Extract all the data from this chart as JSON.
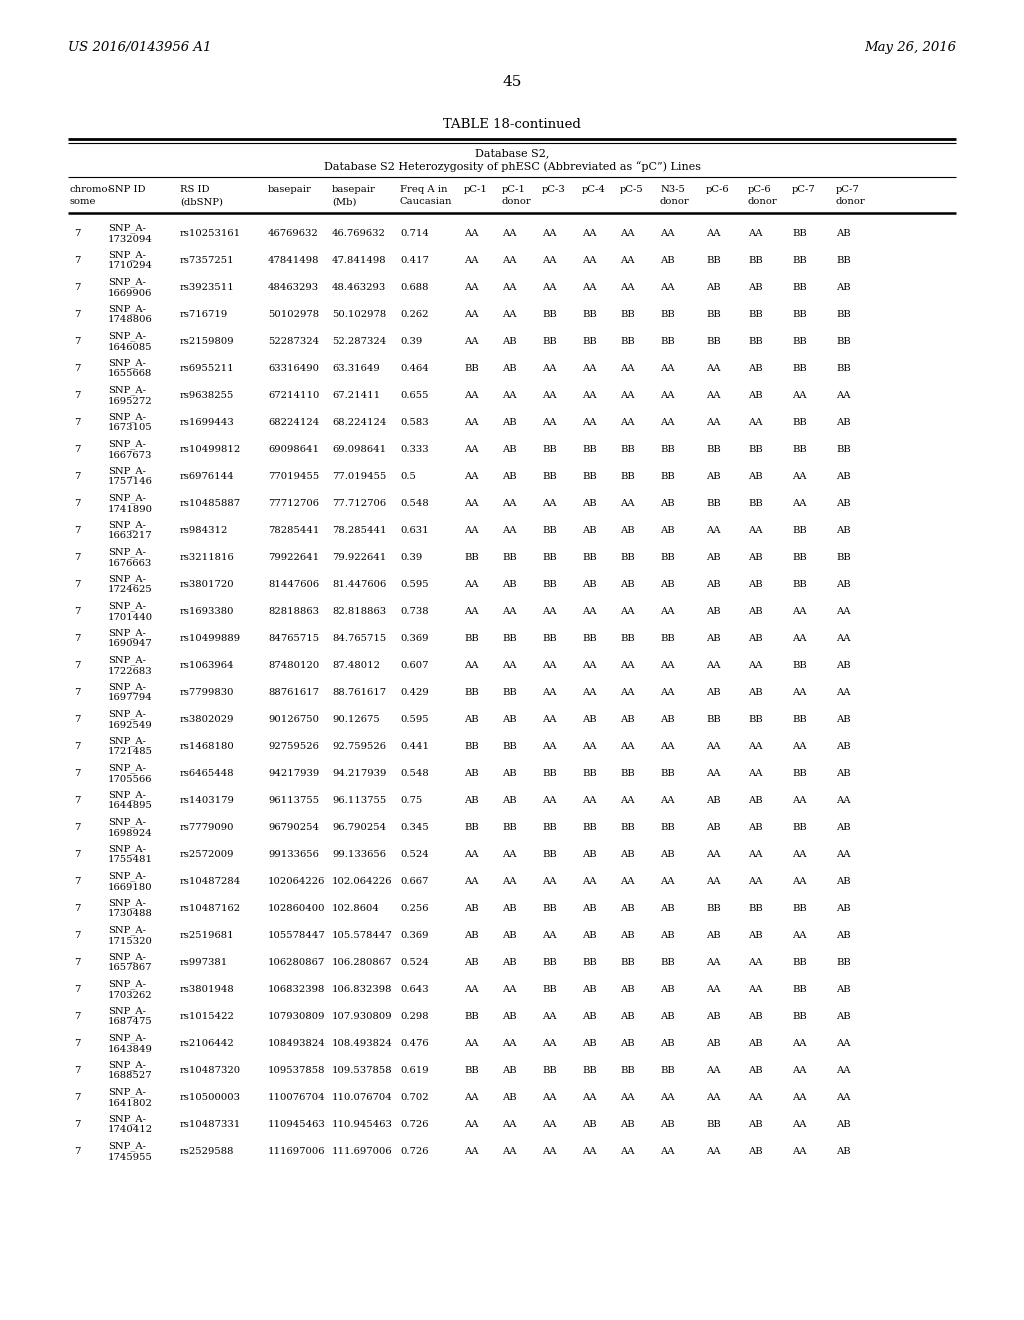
{
  "header_left": "US 2016/0143956 A1",
  "header_right": "May 26, 2016",
  "page_number": "45",
  "table_title": "TABLE 18-continued",
  "db_title1": "Database S2,",
  "db_title2": "Database S2 Heterozygosity of phESC (Abbreviated as “pC”) Lines",
  "col_header_lines": [
    [
      "chromo-",
      "some"
    ],
    [
      "SNP ID",
      ""
    ],
    [
      "RS ID",
      "(dbSNP)"
    ],
    [
      "basepair",
      ""
    ],
    [
      "basepair",
      "(Mb)"
    ],
    [
      "Freq A in",
      "Caucasian"
    ],
    [
      "pC-1",
      ""
    ],
    [
      "pC-1",
      "donor"
    ],
    [
      "pC-3",
      ""
    ],
    [
      "pC-4",
      ""
    ],
    [
      "pC-5",
      ""
    ],
    [
      "N3-5",
      "donor"
    ],
    [
      "pC-6",
      ""
    ],
    [
      "pC-6",
      "donor"
    ],
    [
      "pC-7",
      ""
    ],
    [
      "pC-7",
      "donor"
    ]
  ],
  "rows": [
    [
      "7",
      "SNP_A-\n1732094",
      "rs10253161",
      "46769632",
      "46.769632",
      "0.714",
      "AA",
      "AA",
      "AA",
      "AA",
      "AA",
      "AA",
      "AA",
      "AA",
      "BB",
      "AB"
    ],
    [
      "7",
      "SNP_A-\n1710294",
      "rs7357251",
      "47841498",
      "47.841498",
      "0.417",
      "AA",
      "AA",
      "AA",
      "AA",
      "AA",
      "AB",
      "BB",
      "BB",
      "BB",
      "BB"
    ],
    [
      "7",
      "SNP_A-\n1669906",
      "rs3923511",
      "48463293",
      "48.463293",
      "0.688",
      "AA",
      "AA",
      "AA",
      "AA",
      "AA",
      "AA",
      "AB",
      "AB",
      "BB",
      "AB"
    ],
    [
      "7",
      "SNP_A-\n1748806",
      "rs716719",
      "50102978",
      "50.102978",
      "0.262",
      "AA",
      "AA",
      "BB",
      "BB",
      "BB",
      "BB",
      "BB",
      "BB",
      "BB",
      "BB"
    ],
    [
      "7",
      "SNP_A-\n1646085",
      "rs2159809",
      "52287324",
      "52.287324",
      "0.39",
      "AA",
      "AB",
      "BB",
      "BB",
      "BB",
      "BB",
      "BB",
      "BB",
      "BB",
      "BB"
    ],
    [
      "7",
      "SNP_A-\n1655668",
      "rs6955211",
      "63316490",
      "63.31649",
      "0.464",
      "BB",
      "AB",
      "AA",
      "AA",
      "AA",
      "AA",
      "AA",
      "AB",
      "BB",
      "BB"
    ],
    [
      "7",
      "SNP_A-\n1695272",
      "rs9638255",
      "67214110",
      "67.21411",
      "0.655",
      "AA",
      "AA",
      "AA",
      "AA",
      "AA",
      "AA",
      "AA",
      "AB",
      "AA",
      "AA"
    ],
    [
      "7",
      "SNP_A-\n1673105",
      "rs1699443",
      "68224124",
      "68.224124",
      "0.583",
      "AA",
      "AB",
      "AA",
      "AA",
      "AA",
      "AA",
      "AA",
      "AA",
      "BB",
      "AB"
    ],
    [
      "7",
      "SNP_A-\n1667673",
      "rs10499812",
      "69098641",
      "69.098641",
      "0.333",
      "AA",
      "AB",
      "BB",
      "BB",
      "BB",
      "BB",
      "BB",
      "BB",
      "BB",
      "BB"
    ],
    [
      "7",
      "SNP_A-\n1757146",
      "rs6976144",
      "77019455",
      "77.019455",
      "0.5",
      "AA",
      "AB",
      "BB",
      "BB",
      "BB",
      "BB",
      "AB",
      "AB",
      "AA",
      "AB"
    ],
    [
      "7",
      "SNP_A-\n1741890",
      "rs10485887",
      "77712706",
      "77.712706",
      "0.548",
      "AA",
      "AA",
      "AA",
      "AB",
      "AA",
      "AB",
      "BB",
      "BB",
      "AA",
      "AB"
    ],
    [
      "7",
      "SNP_A-\n1663217",
      "rs984312",
      "78285441",
      "78.285441",
      "0.631",
      "AA",
      "AA",
      "BB",
      "AB",
      "AB",
      "AB",
      "AA",
      "AA",
      "BB",
      "AB"
    ],
    [
      "7",
      "SNP_A-\n1676663",
      "rs3211816",
      "79922641",
      "79.922641",
      "0.39",
      "BB",
      "BB",
      "BB",
      "BB",
      "BB",
      "BB",
      "AB",
      "AB",
      "BB",
      "BB"
    ],
    [
      "7",
      "SNP_A-\n1724625",
      "rs3801720",
      "81447606",
      "81.447606",
      "0.595",
      "AA",
      "AB",
      "BB",
      "AB",
      "AB",
      "AB",
      "AB",
      "AB",
      "BB",
      "AB"
    ],
    [
      "7",
      "SNP_A-\n1701440",
      "rs1693380",
      "82818863",
      "82.818863",
      "0.738",
      "AA",
      "AA",
      "AA",
      "AA",
      "AA",
      "AA",
      "AB",
      "AB",
      "AA",
      "AA"
    ],
    [
      "7",
      "SNP_A-\n1690947",
      "rs10499889",
      "84765715",
      "84.765715",
      "0.369",
      "BB",
      "BB",
      "BB",
      "BB",
      "BB",
      "BB",
      "AB",
      "AB",
      "AA",
      "AA"
    ],
    [
      "7",
      "SNP_A-\n1722683",
      "rs1063964",
      "87480120",
      "87.48012",
      "0.607",
      "AA",
      "AA",
      "AA",
      "AA",
      "AA",
      "AA",
      "AA",
      "AA",
      "BB",
      "AB"
    ],
    [
      "7",
      "SNP_A-\n1697794",
      "rs7799830",
      "88761617",
      "88.761617",
      "0.429",
      "BB",
      "BB",
      "AA",
      "AA",
      "AA",
      "AA",
      "AB",
      "AB",
      "AA",
      "AA"
    ],
    [
      "7",
      "SNP_A-\n1692549",
      "rs3802029",
      "90126750",
      "90.12675",
      "0.595",
      "AB",
      "AB",
      "AA",
      "AB",
      "AB",
      "AB",
      "BB",
      "BB",
      "BB",
      "AB"
    ],
    [
      "7",
      "SNP_A-\n1721485",
      "rs1468180",
      "92759526",
      "92.759526",
      "0.441",
      "BB",
      "BB",
      "AA",
      "AA",
      "AA",
      "AA",
      "AA",
      "AA",
      "AA",
      "AB"
    ],
    [
      "7",
      "SNP_A-\n1705566",
      "rs6465448",
      "94217939",
      "94.217939",
      "0.548",
      "AB",
      "AB",
      "BB",
      "BB",
      "BB",
      "BB",
      "AA",
      "AA",
      "BB",
      "AB"
    ],
    [
      "7",
      "SNP_A-\n1644895",
      "rs1403179",
      "96113755",
      "96.113755",
      "0.75",
      "AB",
      "AB",
      "AA",
      "AA",
      "AA",
      "AA",
      "AB",
      "AB",
      "AA",
      "AA"
    ],
    [
      "7",
      "SNP_A-\n1698924",
      "rs7779090",
      "96790254",
      "96.790254",
      "0.345",
      "BB",
      "BB",
      "BB",
      "BB",
      "BB",
      "BB",
      "AB",
      "AB",
      "BB",
      "AB"
    ],
    [
      "7",
      "SNP_A-\n1755481",
      "rs2572009",
      "99133656",
      "99.133656",
      "0.524",
      "AA",
      "AA",
      "BB",
      "AB",
      "AB",
      "AB",
      "AA",
      "AA",
      "AA",
      "AA"
    ],
    [
      "7",
      "SNP_A-\n1669180",
      "rs10487284",
      "102064226",
      "102.064226",
      "0.667",
      "AA",
      "AA",
      "AA",
      "AA",
      "AA",
      "AA",
      "AA",
      "AA",
      "AA",
      "AB"
    ],
    [
      "7",
      "SNP_A-\n1730488",
      "rs10487162",
      "102860400",
      "102.8604",
      "0.256",
      "AB",
      "AB",
      "BB",
      "AB",
      "AB",
      "AB",
      "BB",
      "BB",
      "BB",
      "AB"
    ],
    [
      "7",
      "SNP_A-\n1715320",
      "rs2519681",
      "105578447",
      "105.578447",
      "0.369",
      "AB",
      "AB",
      "AA",
      "AB",
      "AB",
      "AB",
      "AB",
      "AB",
      "AA",
      "AB"
    ],
    [
      "7",
      "SNP_A-\n1657867",
      "rs997381",
      "106280867",
      "106.280867",
      "0.524",
      "AB",
      "AB",
      "BB",
      "BB",
      "BB",
      "BB",
      "AA",
      "AA",
      "BB",
      "BB"
    ],
    [
      "7",
      "SNP_A-\n1703262",
      "rs3801948",
      "106832398",
      "106.832398",
      "0.643",
      "AA",
      "AA",
      "BB",
      "AB",
      "AB",
      "AB",
      "AA",
      "AA",
      "BB",
      "AB"
    ],
    [
      "7",
      "SNP_A-\n1687475",
      "rs1015422",
      "107930809",
      "107.930809",
      "0.298",
      "BB",
      "AB",
      "AA",
      "AB",
      "AB",
      "AB",
      "AB",
      "AB",
      "BB",
      "AB"
    ],
    [
      "7",
      "SNP_A-\n1643849",
      "rs2106442",
      "108493824",
      "108.493824",
      "0.476",
      "AA",
      "AA",
      "AA",
      "AB",
      "AB",
      "AB",
      "AB",
      "AB",
      "AA",
      "AA"
    ],
    [
      "7",
      "SNP_A-\n1688527",
      "rs10487320",
      "109537858",
      "109.537858",
      "0.619",
      "BB",
      "AB",
      "BB",
      "BB",
      "BB",
      "BB",
      "AA",
      "AB",
      "AA",
      "AA"
    ],
    [
      "7",
      "SNP_A-\n1641802",
      "rs10500003",
      "110076704",
      "110.076704",
      "0.702",
      "AA",
      "AB",
      "AA",
      "AA",
      "AA",
      "AA",
      "AA",
      "AA",
      "AA",
      "AA"
    ],
    [
      "7",
      "SNP_A-\n1740412",
      "rs10487331",
      "110945463",
      "110.945463",
      "0.726",
      "AA",
      "AA",
      "AA",
      "AB",
      "AB",
      "AB",
      "BB",
      "AB",
      "AA",
      "AB"
    ],
    [
      "7",
      "SNP_A-\n1745955",
      "rs2529588",
      "111697006",
      "111.697006",
      "0.726",
      "AA",
      "AA",
      "AA",
      "AA",
      "AA",
      "AA",
      "AA",
      "AB",
      "AA",
      "AB"
    ]
  ]
}
